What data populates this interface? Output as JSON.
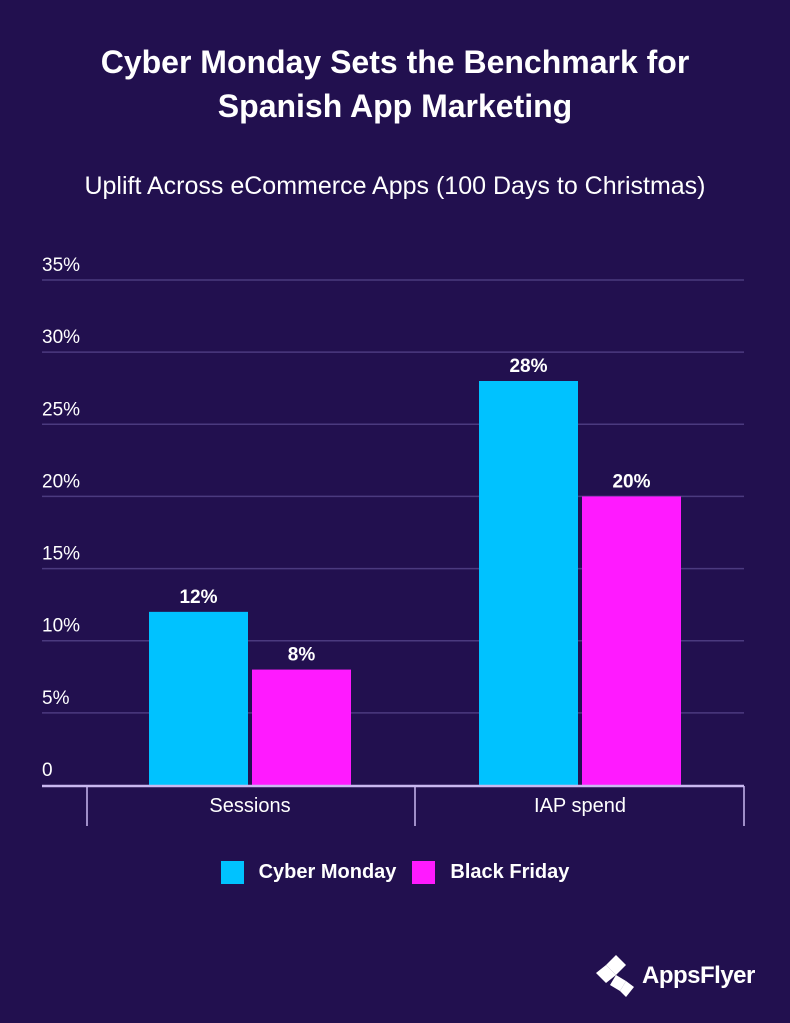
{
  "colors": {
    "background": "#22104f",
    "cyber_monday": "#00c2ff",
    "black_friday": "#ff1aff",
    "grid": "#4b3a7f",
    "axis": "#c9b8f0",
    "text": "#ffffff"
  },
  "chart_data": {
    "type": "bar",
    "title": "Cyber Monday Sets the Benchmark for Spanish App Marketing",
    "subtitle": "Uplift Across eCommerce Apps (100 Days to Christmas)",
    "categories": [
      "Sessions",
      "IAP spend"
    ],
    "series": [
      {
        "name": "Cyber Monday",
        "values": [
          12,
          28
        ],
        "labels": [
          "12%",
          "28%"
        ],
        "color": "#00c2ff"
      },
      {
        "name": "Black Friday",
        "values": [
          8,
          20
        ],
        "labels": [
          "8%",
          "20%"
        ],
        "color": "#ff1aff"
      }
    ],
    "ylim": [
      0,
      35
    ],
    "yticks": [
      0,
      5,
      10,
      15,
      20,
      25,
      30,
      35
    ],
    "ytick_labels": [
      "0",
      "5%",
      "10%",
      "15%",
      "20%",
      "25%",
      "30%",
      "35%"
    ],
    "xlabel": "",
    "ylabel": "",
    "grid": true,
    "legend": "bottom-center"
  },
  "legend": {
    "items": [
      {
        "label": "Cyber Monday"
      },
      {
        "label": "Black Friday"
      }
    ]
  },
  "brand": {
    "logo_text": "AppsFlyer",
    "logo_icon": "appsflyer-logo-icon"
  }
}
